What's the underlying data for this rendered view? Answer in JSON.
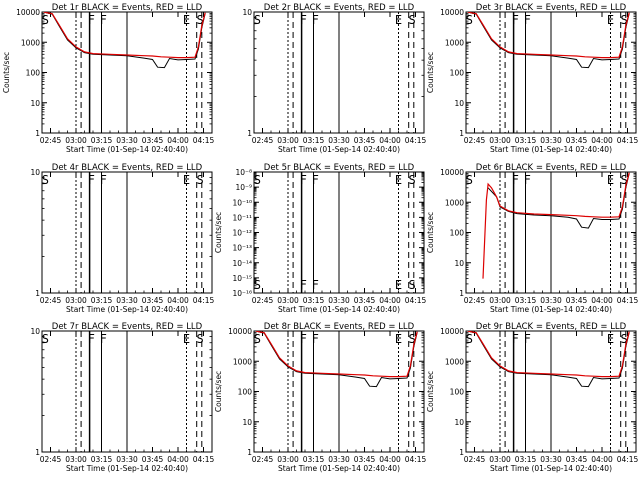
{
  "figure": {
    "xtick_labels": [
      "02:45",
      "03:00",
      "03:15",
      "03:30",
      "03:45",
      "04:00",
      "04:15"
    ],
    "xlabel": "Start Time (01-Sep-14 02:40:40)",
    "colors": {
      "events": "#000000",
      "lld": "#dd0000"
    }
  },
  "chart_data": [
    {
      "type": "line",
      "title": "Det 1r BLACK = Events, RED = LLD",
      "ylabel": "Counts/sec",
      "yscale": "log",
      "ylim": [
        1,
        10000
      ],
      "ytick_labels": [
        "1",
        "10",
        "100",
        "1000",
        "10000"
      ],
      "xlim": [
        "02:40",
        "04:20"
      ],
      "markers": [
        "S",
        "F",
        "F",
        "E",
        "S"
      ],
      "series": [
        {
          "name": "Events",
          "color": "#000000",
          "x": [
            "02:41",
            "02:44",
            "02:46",
            "02:50",
            "02:55",
            "03:00",
            "03:05",
            "03:10",
            "03:20",
            "03:30",
            "03:40",
            "03:45",
            "03:48",
            "03:52",
            "03:55",
            "04:00",
            "04:05",
            "04:10",
            "04:12",
            "04:14",
            "04:16"
          ],
          "y": [
            10000,
            9000,
            8500,
            3500,
            1200,
            650,
            450,
            400,
            380,
            360,
            300,
            270,
            150,
            145,
            290,
            260,
            270,
            280,
            600,
            3000,
            9000
          ]
        },
        {
          "name": "LLD",
          "color": "#dd0000",
          "x": [
            "02:41",
            "02:44",
            "02:46",
            "02:50",
            "02:55",
            "03:00",
            "03:05",
            "03:10",
            "03:20",
            "03:30",
            "03:40",
            "03:45",
            "03:50",
            "03:55",
            "04:00",
            "04:05",
            "04:10",
            "04:12",
            "04:14",
            "04:16"
          ],
          "y": [
            10000,
            9200,
            8800,
            3800,
            1300,
            700,
            480,
            420,
            400,
            380,
            360,
            350,
            330,
            320,
            310,
            310,
            320,
            700,
            3500,
            9500
          ]
        }
      ]
    },
    {
      "type": "line",
      "title": "Det 2r BLACK = Events, RED = LLD",
      "ylabel": "",
      "yscale": "log",
      "ylim": [
        1,
        10
      ],
      "ytick_labels": [
        "1",
        "10"
      ],
      "xlim": [
        "02:40",
        "04:20"
      ],
      "markers": [
        "S",
        "F",
        "F",
        "E",
        "S"
      ],
      "series": []
    },
    {
      "type": "line",
      "title": "Det 3r BLACK = Events, RED = LLD",
      "ylabel": "Counts/sec",
      "yscale": "log",
      "ylim": [
        1,
        10000
      ],
      "ytick_labels": [
        "1",
        "10",
        "100",
        "1000",
        "10000"
      ],
      "xlim": [
        "02:40",
        "04:20"
      ],
      "markers": [
        "S",
        "F",
        "F",
        "E",
        "S"
      ],
      "series": [
        {
          "name": "Events",
          "color": "#000000",
          "x": [
            "02:41",
            "02:44",
            "02:46",
            "02:50",
            "02:55",
            "03:00",
            "03:05",
            "03:10",
            "03:20",
            "03:30",
            "03:40",
            "03:45",
            "03:48",
            "03:52",
            "03:55",
            "04:00",
            "04:05",
            "04:10",
            "04:12",
            "04:14",
            "04:16"
          ],
          "y": [
            10000,
            9000,
            8500,
            3500,
            1200,
            650,
            450,
            400,
            380,
            360,
            300,
            270,
            150,
            145,
            290,
            260,
            270,
            280,
            600,
            3000,
            9000
          ]
        },
        {
          "name": "LLD",
          "color": "#dd0000",
          "x": [
            "02:41",
            "02:44",
            "02:46",
            "02:50",
            "02:55",
            "03:00",
            "03:05",
            "03:10",
            "03:20",
            "03:30",
            "03:40",
            "03:45",
            "03:50",
            "03:55",
            "04:00",
            "04:05",
            "04:10",
            "04:12",
            "04:14",
            "04:16"
          ],
          "y": [
            10000,
            9200,
            8800,
            3800,
            1300,
            700,
            480,
            420,
            400,
            380,
            360,
            350,
            330,
            320,
            310,
            310,
            320,
            700,
            3500,
            9500
          ]
        }
      ]
    },
    {
      "type": "line",
      "title": "Det 4r BLACK = Events, RED = LLD",
      "ylabel": "",
      "yscale": "log",
      "ylim": [
        1,
        10
      ],
      "ytick_labels": [
        "1",
        "10"
      ],
      "xlim": [
        "02:40",
        "04:20"
      ],
      "markers": [
        "S",
        "F",
        "F",
        "E",
        "S"
      ],
      "series": []
    },
    {
      "type": "line",
      "title": "Det 5r BLACK = Events, RED = LLD",
      "ylabel": "Counts/sec",
      "yscale": "log",
      "ylim": [
        1e-16,
        1e-08
      ],
      "ytick_labels": [
        "10⁻⁸",
        "10⁻⁹",
        "10⁻¹⁰",
        "10⁻¹¹",
        "10⁻¹²",
        "10⁻¹³",
        "10⁻¹⁴",
        "10⁻¹⁵",
        "10⁻¹⁶"
      ],
      "xlim": [
        "02:40",
        "04:20"
      ],
      "markers": [
        "S",
        "F",
        "F",
        "E",
        "S"
      ],
      "series": []
    },
    {
      "type": "line",
      "title": "Det 6r BLACK = Events, RED = LLD",
      "ylabel": "Counts/sec",
      "yscale": "log",
      "ylim": [
        1,
        10000
      ],
      "ytick_labels": [
        "1",
        "10",
        "100",
        "1000",
        "10000"
      ],
      "xlim": [
        "02:40",
        "04:20"
      ],
      "markers": [
        "S",
        "F",
        "F",
        "E",
        "S"
      ],
      "series": [
        {
          "name": "Events",
          "color": "#000000",
          "x": [
            "02:53",
            "02:58",
            "03:00",
            "03:05",
            "03:10",
            "03:20",
            "03:30",
            "03:40",
            "03:45",
            "03:48",
            "03:52",
            "03:55",
            "04:00",
            "04:05",
            "04:10",
            "04:12",
            "04:14",
            "04:16"
          ],
          "y": [
            3000,
            1500,
            700,
            500,
            420,
            380,
            360,
            320,
            280,
            150,
            140,
            290,
            270,
            270,
            280,
            600,
            3000,
            9000
          ]
        },
        {
          "name": "LLD",
          "color": "#dd0000",
          "x": [
            "02:50",
            "02:52",
            "02:53",
            "02:55",
            "02:58",
            "03:00",
            "03:05",
            "03:10",
            "03:20",
            "03:30",
            "03:40",
            "03:45",
            "03:50",
            "03:55",
            "04:00",
            "04:05",
            "04:10",
            "04:12",
            "04:14",
            "04:16"
          ],
          "y": [
            3,
            1200,
            4000,
            3000,
            1500,
            750,
            520,
            450,
            410,
            390,
            370,
            360,
            340,
            330,
            320,
            320,
            330,
            700,
            3500,
            9500
          ]
        }
      ]
    },
    {
      "type": "line",
      "title": "Det 7r BLACK = Events, RED = LLD",
      "ylabel": "",
      "yscale": "log",
      "ylim": [
        1,
        10
      ],
      "ytick_labels": [
        "1",
        "10"
      ],
      "xlim": [
        "02:40",
        "04:20"
      ],
      "markers": [
        "S",
        "F",
        "F",
        "E",
        "S"
      ],
      "series": []
    },
    {
      "type": "line",
      "title": "Det 8r BLACK = Events, RED = LLD",
      "ylabel": "Counts/sec",
      "yscale": "log",
      "ylim": [
        1,
        10000
      ],
      "ytick_labels": [
        "1",
        "10",
        "100",
        "1000",
        "10000"
      ],
      "xlim": [
        "02:40",
        "04:20"
      ],
      "markers": [
        "S",
        "F",
        "F",
        "E",
        "S"
      ],
      "series": [
        {
          "name": "Events",
          "color": "#000000",
          "x": [
            "02:41",
            "02:44",
            "02:46",
            "02:50",
            "02:55",
            "03:00",
            "03:05",
            "03:10",
            "03:20",
            "03:30",
            "03:40",
            "03:45",
            "03:48",
            "03:52",
            "03:55",
            "04:00",
            "04:05",
            "04:10",
            "04:12",
            "04:14",
            "04:16"
          ],
          "y": [
            10000,
            9000,
            8500,
            3500,
            1200,
            650,
            450,
            400,
            380,
            360,
            300,
            270,
            150,
            145,
            290,
            260,
            270,
            280,
            600,
            3000,
            9000
          ]
        },
        {
          "name": "LLD",
          "color": "#dd0000",
          "x": [
            "02:41",
            "02:44",
            "02:46",
            "02:50",
            "02:55",
            "03:00",
            "03:05",
            "03:10",
            "03:20",
            "03:30",
            "03:40",
            "03:45",
            "03:50",
            "03:55",
            "04:00",
            "04:05",
            "04:10",
            "04:12",
            "04:14",
            "04:16"
          ],
          "y": [
            10000,
            9200,
            8800,
            3800,
            1300,
            700,
            480,
            420,
            400,
            380,
            360,
            350,
            330,
            320,
            310,
            310,
            320,
            700,
            3500,
            9500
          ]
        }
      ]
    },
    {
      "type": "line",
      "title": "Det 9r BLACK = Events, RED = LLD",
      "ylabel": "Counts/sec",
      "yscale": "log",
      "ylim": [
        1,
        10000
      ],
      "ytick_labels": [
        "1",
        "10",
        "100",
        "1000",
        "10000"
      ],
      "xlim": [
        "02:40",
        "04:20"
      ],
      "markers": [
        "S",
        "F",
        "F",
        "E",
        "S"
      ],
      "series": [
        {
          "name": "Events",
          "color": "#000000",
          "x": [
            "02:41",
            "02:44",
            "02:46",
            "02:50",
            "02:55",
            "03:00",
            "03:05",
            "03:10",
            "03:20",
            "03:30",
            "03:40",
            "03:45",
            "03:48",
            "03:52",
            "03:55",
            "04:00",
            "04:05",
            "04:10",
            "04:12",
            "04:14",
            "04:16"
          ],
          "y": [
            10000,
            9000,
            8500,
            3500,
            1200,
            650,
            450,
            400,
            380,
            360,
            300,
            270,
            150,
            145,
            290,
            260,
            270,
            280,
            600,
            3000,
            9000
          ]
        },
        {
          "name": "LLD",
          "color": "#dd0000",
          "x": [
            "02:41",
            "02:44",
            "02:46",
            "02:50",
            "02:55",
            "03:00",
            "03:05",
            "03:10",
            "03:20",
            "03:30",
            "03:40",
            "03:45",
            "03:50",
            "03:55",
            "04:00",
            "04:05",
            "04:10",
            "04:12",
            "04:14",
            "04:16"
          ],
          "y": [
            10000,
            9200,
            8800,
            3800,
            1300,
            700,
            480,
            420,
            400,
            380,
            360,
            350,
            330,
            320,
            310,
            310,
            320,
            700,
            3500,
            9500
          ]
        }
      ]
    }
  ]
}
